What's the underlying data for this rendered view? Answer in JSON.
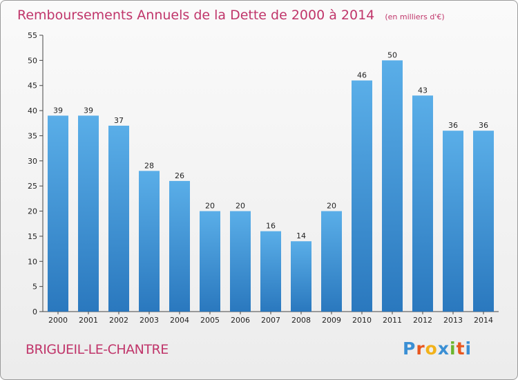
{
  "chart_data": {
    "type": "bar",
    "title": "Remboursements Annuels de la Dette de 2000 à 2014",
    "unit_note": "(en milliers d'€)",
    "categories": [
      "2000",
      "2001",
      "2002",
      "2003",
      "2004",
      "2005",
      "2006",
      "2007",
      "2008",
      "2009",
      "2010",
      "2011",
      "2012",
      "2013",
      "2014"
    ],
    "values": [
      39,
      39,
      37,
      28,
      26,
      20,
      20,
      16,
      14,
      20,
      46,
      50,
      43,
      36,
      36
    ],
    "ylim": [
      0,
      55
    ],
    "yticks": [
      0,
      5,
      10,
      15,
      20,
      25,
      30,
      35,
      40,
      45,
      50,
      55
    ],
    "grid": false,
    "bar_color_top": "#5aaee8",
    "bar_color_bottom": "#2a78be"
  },
  "commune": "BRIGUEIL-LE-CHANTRE",
  "logo": {
    "letters": [
      "P",
      "r",
      "o",
      "x",
      "i",
      "t",
      "i"
    ],
    "colors": [
      "#3a8fd4",
      "#e8571f",
      "#f2b21a",
      "#3a8fd4",
      "#6cb52d",
      "#e8571f",
      "#3a8fd4"
    ]
  }
}
